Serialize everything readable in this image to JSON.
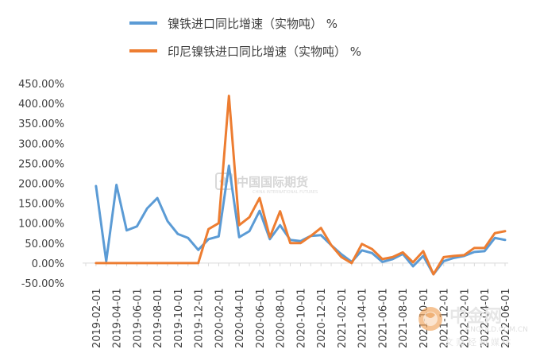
{
  "chart_data": {
    "type": "line",
    "title": "",
    "xlabel": "",
    "ylabel": "",
    "ylim": [
      -50,
      450
    ],
    "y_tick_labels": [
      "-50.00%",
      "0.00%",
      "50.00%",
      "100.00%",
      "150.00%",
      "200.00%",
      "250.00%",
      "300.00%",
      "350.00%",
      "400.00%",
      "450.00%"
    ],
    "y_ticks": [
      -50,
      0,
      50,
      100,
      150,
      200,
      250,
      300,
      350,
      400,
      450
    ],
    "x": [
      "2019-01",
      "2019-02",
      "2019-03",
      "2019-04",
      "2019-05",
      "2019-06",
      "2019-07",
      "2019-08",
      "2019-09",
      "2019-10",
      "2019-11",
      "2019-12",
      "2020-01",
      "2020-02",
      "2020-03",
      "2020-04",
      "2020-05",
      "2020-06",
      "2020-07",
      "2020-08",
      "2020-09",
      "2020-10",
      "2020-11",
      "2020-12",
      "2021-01",
      "2021-02",
      "2021-03",
      "2021-04",
      "2021-05",
      "2021-06",
      "2021-07",
      "2021-08",
      "2021-09",
      "2021-10",
      "2021-11",
      "2021-12",
      "2022-01",
      "2022-02",
      "2022-03",
      "2022-04",
      "2022-05",
      "2022-06"
    ],
    "x_tick_labels": [
      "2019-02-01",
      "2019-04-01",
      "2019-06-01",
      "2019-08-01",
      "2019-10-01",
      "2019-12-01",
      "2020-02-01",
      "2020-04-01",
      "2020-06-01",
      "2020-08-01",
      "2020-10-01",
      "2020-12-01",
      "2021-02-01",
      "2021-04-01",
      "2021-06-01",
      "2021-08-01",
      "2021-10-01",
      "2021-12-01",
      "2022-02-01",
      "2022-04-01",
      "2022-06-01"
    ],
    "x_tick_months": [
      "2019-02",
      "2019-04",
      "2019-06",
      "2019-08",
      "2019-10",
      "2019-12",
      "2020-02",
      "2020-04",
      "2020-06",
      "2020-08",
      "2020-10",
      "2020-12",
      "2021-02",
      "2021-04",
      "2021-06",
      "2021-08",
      "2021-10",
      "2021-12",
      "2022-02",
      "2022-04",
      "2022-06"
    ],
    "grid": false,
    "legend": "top",
    "series": [
      {
        "name": "镍铁进口同比增速（实物吨） %",
        "color": "#5b9bd5",
        "values": [
          null,
          193,
          5,
          196,
          82,
          92,
          137,
          163,
          105,
          73,
          63,
          33,
          60,
          67,
          244,
          65,
          80,
          131,
          60,
          95,
          58,
          55,
          68,
          70,
          45,
          22,
          3,
          32,
          25,
          3,
          10,
          23,
          -8,
          18,
          -28,
          5,
          13,
          18,
          28,
          30,
          63,
          58
        ]
      },
      {
        "name": "印尼镍铁进口同比增速（实物吨） %",
        "color": "#ed7d31",
        "values": [
          null,
          0,
          0,
          0,
          0,
          0,
          0,
          0,
          0,
          0,
          0,
          0,
          85,
          100,
          419,
          95,
          115,
          163,
          65,
          130,
          50,
          50,
          68,
          88,
          45,
          15,
          0,
          48,
          35,
          10,
          15,
          27,
          2,
          30,
          -28,
          15,
          18,
          20,
          38,
          38,
          75,
          80
        ]
      }
    ]
  },
  "watermark": {
    "brand": "中国国际期货",
    "brand_sub": "CHINA INTERNATIONAL FUTURES"
  },
  "logo": {
    "name": "中金网",
    "url": "CNGOLD.COM.CN",
    "slogan": "文 财 经 新 媒 体"
  }
}
